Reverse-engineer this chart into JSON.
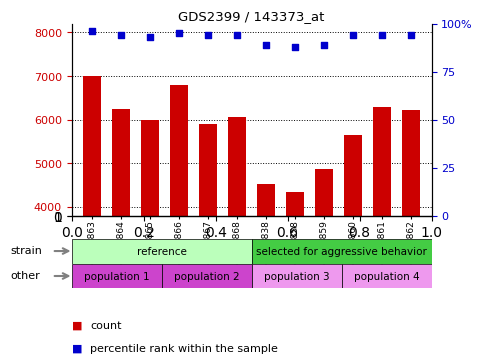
{
  "title": "GDS2399 / 143373_at",
  "samples": [
    "GSM120863",
    "GSM120864",
    "GSM120865",
    "GSM120866",
    "GSM120867",
    "GSM120868",
    "GSM120838",
    "GSM120858",
    "GSM120859",
    "GSM120860",
    "GSM120861",
    "GSM120862"
  ],
  "counts": [
    7000,
    6250,
    6000,
    6800,
    5900,
    6050,
    4520,
    4350,
    4870,
    5650,
    6280,
    6220
  ],
  "percentiles": [
    96,
    94,
    93,
    95,
    94,
    94,
    89,
    88,
    89,
    94,
    94,
    94
  ],
  "ylim_left": [
    3800,
    8200
  ],
  "ylim_right": [
    0,
    100
  ],
  "yticks_left": [
    4000,
    5000,
    6000,
    7000,
    8000
  ],
  "yticks_right": [
    0,
    25,
    50,
    75,
    100
  ],
  "bar_color": "#cc0000",
  "scatter_color": "#0000cc",
  "strain_row": [
    {
      "label": "reference",
      "start": 0,
      "end": 6,
      "color": "#bbffbb"
    },
    {
      "label": "selected for aggressive behavior",
      "start": 6,
      "end": 12,
      "color": "#44cc44"
    }
  ],
  "other_row": [
    {
      "label": "population 1",
      "start": 0,
      "end": 3,
      "color": "#cc44cc"
    },
    {
      "label": "population 2",
      "start": 3,
      "end": 6,
      "color": "#cc44cc"
    },
    {
      "label": "population 3",
      "start": 6,
      "end": 9,
      "color": "#ee99ee"
    },
    {
      "label": "population 4",
      "start": 9,
      "end": 12,
      "color": "#ee99ee"
    }
  ],
  "legend_count_color": "#cc0000",
  "legend_percentile_color": "#0000cc",
  "strain_label": "strain",
  "other_label": "other",
  "ylabel_left_color": "#cc0000",
  "ylabel_right_color": "#0000cc"
}
